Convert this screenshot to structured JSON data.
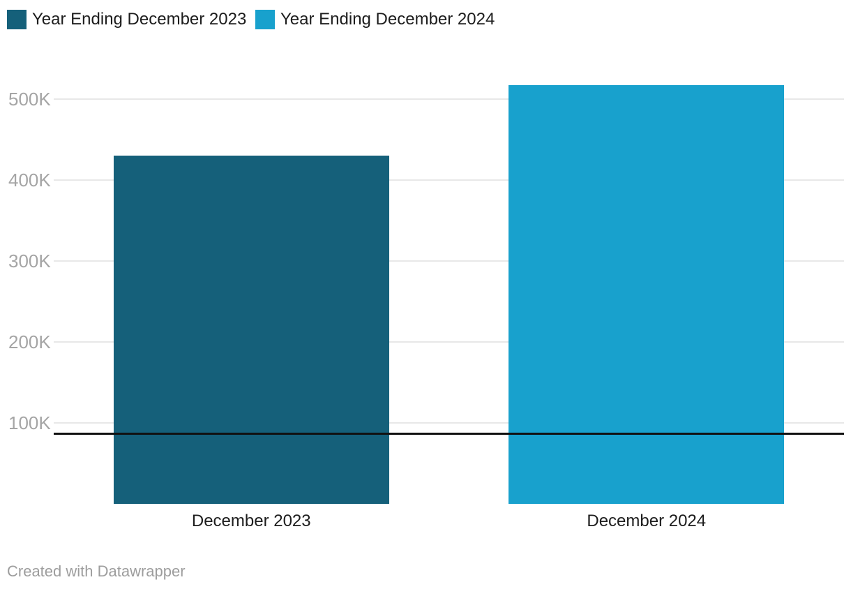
{
  "colors": {
    "series_2023": "#15607a",
    "series_2024": "#18a1cd",
    "gridline": "#e8e8e8",
    "axis_line": "#111111",
    "tick_label": "#a5a5a5",
    "category_label": "#1d1d1d",
    "footer_text": "#9d9d9d",
    "background": "#ffffff"
  },
  "legend": {
    "items": [
      {
        "label": "Year Ending December 2023",
        "color": "#15607a"
      },
      {
        "label": "Year Ending December 2024",
        "color": "#18a1cd"
      }
    ]
  },
  "footer": {
    "credit": "Created with Datawrapper"
  },
  "chart_data": {
    "type": "bar",
    "title": "",
    "xlabel": "",
    "ylabel": "",
    "categories": [
      "December 2023",
      "December 2024"
    ],
    "values": [
      430000,
      517000
    ],
    "bar_colors": [
      "#15607a",
      "#18a1cd"
    ],
    "legend_entries": [
      "Year Ending December 2023",
      "Year Ending December 2024"
    ],
    "legend_position": "top-left",
    "ylim": [
      0,
      536000
    ],
    "yticks": [
      100000,
      200000,
      300000,
      400000,
      500000
    ],
    "ytick_labels": [
      "100K",
      "200K",
      "300K",
      "400K",
      "500K"
    ],
    "grid": "horizontal",
    "credit": "Created with Datawrapper"
  }
}
